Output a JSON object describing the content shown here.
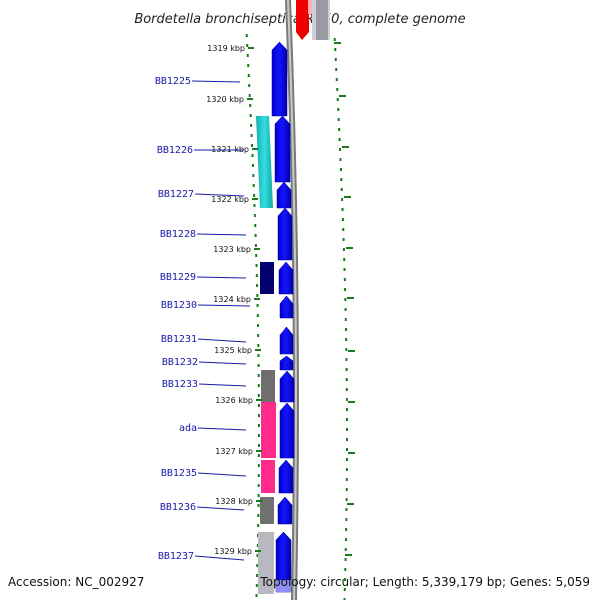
{
  "title": "Bordetella bronchiseptica RB50, complete genome",
  "footer": {
    "accession": "Accession: NC_002927",
    "summary": "Topology: circular; Length: 5,339,179 bp; Genes: 5,059"
  },
  "ruler": [
    {
      "label": "1319 kbp"
    },
    {
      "label": "1320 kbp"
    },
    {
      "label": "1321 kbp"
    },
    {
      "label": "1322 kbp"
    },
    {
      "label": "1323 kbp"
    },
    {
      "label": "1324 kbp"
    },
    {
      "label": "1325 kbp"
    },
    {
      "label": "1326 kbp"
    },
    {
      "label": "1327 kbp"
    },
    {
      "label": "1328 kbp"
    },
    {
      "label": "1329 kbp"
    }
  ],
  "genes": [
    {
      "label": "BB1225"
    },
    {
      "label": "BB1226"
    },
    {
      "label": "BB1227"
    },
    {
      "label": "BB1228"
    },
    {
      "label": "BB1229"
    },
    {
      "label": "BB1230"
    },
    {
      "label": "BB1231"
    },
    {
      "label": "BB1232"
    },
    {
      "label": "BB1233"
    },
    {
      "label": "ada"
    },
    {
      "label": "BB1235"
    },
    {
      "label": "BB1236"
    },
    {
      "label": "BB1237"
    }
  ],
  "colors": {
    "gene_blue": "#0000ee",
    "cyan": "#1cc8c8",
    "navy": "#00006e",
    "gray": "#6e6e6e",
    "pink": "#ff2a8a",
    "light_gray": "#b8b8c0",
    "red": "#ee0000",
    "tick_green": "#1a7a1a",
    "backbone": "#9a9a9a"
  }
}
